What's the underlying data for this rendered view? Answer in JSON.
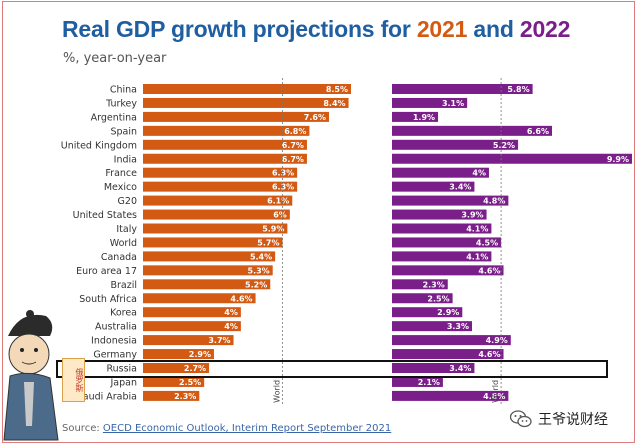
{
  "chart_data": {
    "type": "bar",
    "title": {
      "prefix": "Real GDP growth projections for ",
      "year1": "2021",
      "middle": " and ",
      "year2": "2022"
    },
    "subtitle": "%, year-on-year",
    "categories": [
      "China",
      "Turkey",
      "Argentina",
      "Spain",
      "United Kingdom",
      "India",
      "France",
      "Mexico",
      "G20",
      "United States",
      "Italy",
      "World",
      "Canada",
      "Euro area 17",
      "Brazil",
      "South Africa",
      "Korea",
      "Australia",
      "Indonesia",
      "Germany",
      "Russia",
      "Japan",
      "Saudi Arabia"
    ],
    "series": [
      {
        "name": "2021",
        "color": "#d35a12",
        "values": [
          8.5,
          8.4,
          7.6,
          6.8,
          6.7,
          6.7,
          6.3,
          6.3,
          6.1,
          6,
          5.9,
          5.7,
          5.4,
          5.3,
          5.2,
          4.6,
          4,
          4,
          3.7,
          2.9,
          2.7,
          2.5,
          2.3
        ],
        "labels": [
          "8.5%",
          "8.4%",
          "7.6%",
          "6.8%",
          "6.7%",
          "6.7%",
          "6.3%",
          "6.3%",
          "6.1%",
          "6%",
          "5.9%",
          "5.7%",
          "5.4%",
          "5.3%",
          "5.2%",
          "4.6%",
          "4%",
          "4%",
          "3.7%",
          "2.9%",
          "2.7%",
          "2.5%",
          "2.3%"
        ]
      },
      {
        "name": "2022",
        "color": "#7a1f8a",
        "values": [
          5.8,
          3.1,
          1.9,
          6.6,
          5.2,
          9.9,
          4,
          3.4,
          4.8,
          3.9,
          4.1,
          4.5,
          4.1,
          4.6,
          2.3,
          2.5,
          2.9,
          3.3,
          4.9,
          4.6,
          3.4,
          2.1,
          4.8
        ],
        "labels": [
          "5.8%",
          "3.1%",
          "1.9%",
          "6.6%",
          "5.2%",
          "9.9%",
          "4%",
          "3.4%",
          "4.8%",
          "3.9%",
          "4.1%",
          "4.5%",
          "4.1%",
          "4.6%",
          "2.3%",
          "2.5%",
          "2.9%",
          "3.3%",
          "4.9%",
          "4.6%",
          "3.4%",
          "2.1%",
          "4.8%"
        ]
      }
    ],
    "reference_lines": [
      {
        "series": "2021",
        "label": "World",
        "value": 5.7
      },
      {
        "series": "2022",
        "label": "World",
        "value": 4.5
      }
    ],
    "highlighted_category": "Russia",
    "xlim_2021": [
      0,
      8.5
    ],
    "xlim_2022": [
      0,
      9.9
    ]
  },
  "source": {
    "prefix": "Source: ",
    "link_text": "OECD Economic Outlook, Interim Report September 2021"
  },
  "watermark": {
    "text": "王爷说财经",
    "icon": "wechat-icon"
  },
  "sticker": {
    "text": "俄罗斯"
  },
  "colors": {
    "title_blue": "#1f5ea0",
    "bar_2021": "#d35a12",
    "bar_2022": "#7a1f8a"
  }
}
